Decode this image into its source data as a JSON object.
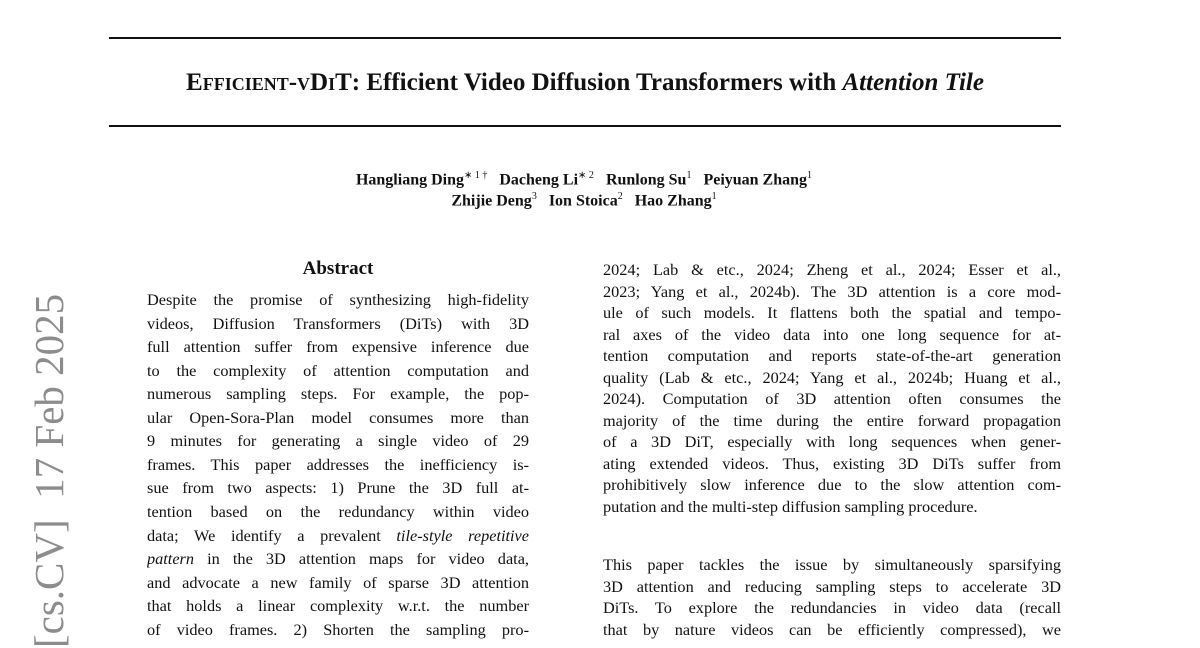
{
  "header": {
    "title": {
      "smallcaps": "Efficient-vDiT",
      "main": ": Efficient Video Diffusion Transformers with ",
      "italic": "Attention Tile"
    }
  },
  "authors": {
    "rows": [
      [
        {
          "name": "Hangliang Ding",
          "sup": "∗ 1 †"
        },
        {
          "name": "Dacheng Li",
          "sup": "∗ 2"
        },
        {
          "name": "Runlong Su",
          "sup": "1"
        },
        {
          "name": "Peiyuan Zhang",
          "sup": "1"
        }
      ],
      [
        {
          "name": "Zhijie Deng",
          "sup": "3"
        },
        {
          "name": "Ion Stoica",
          "sup": "2"
        },
        {
          "name": "Hao Zhang",
          "sup": "1"
        }
      ]
    ]
  },
  "abstract": {
    "heading": "Abstract",
    "lines": [
      "Despite the promise of synthesizing high-fidelity",
      "videos, Diffusion Transformers (DiTs) with 3D",
      "full attention suffer from expensive inference due",
      "to the complexity of attention computation and",
      "numerous sampling steps. For example, the pop-",
      "ular Open-Sora-Plan model consumes more than",
      "9 minutes for generating a single video of 29",
      "frames. This paper addresses the inefficiency is-",
      "sue from two aspects: 1) Prune the 3D full at-",
      "tention based on the redundancy within video",
      [
        {
          "text": "data; We identify a prevalent ",
          "italic": false
        },
        {
          "text": "tile-style repetitive",
          "italic": true
        }
      ],
      [
        {
          "text": "pattern",
          "italic": true
        },
        {
          "text": " in the 3D attention maps for video data,",
          "italic": false
        }
      ],
      "and advocate a new family of sparse 3D attention",
      "that holds a linear complexity w.r.t. the number",
      "of video frames. 2) Shorten the sampling pro-"
    ]
  },
  "body": {
    "paragraphs": [
      [
        "2024; Lab & etc., 2024; Zheng et al., 2024; Esser et al.,",
        "2023; Yang et al., 2024b). The 3D attention is a core mod-",
        "ule of such models. It flattens both the spatial and tempo-",
        "ral axes of the video data into one long sequence for at-",
        "tention computation and reports state-of-the-art generation",
        "quality (Lab & etc., 2024; Yang et al., 2024b; Huang et al.,",
        "2024). Computation of 3D attention often consumes the",
        "majority of the time during the entire forward propagation",
        "of a 3D DiT, especially with long sequences when gener-",
        "ating extended videos. Thus, existing 3D DiTs suffer from",
        "prohibitively slow inference due to the slow attention com-",
        "putation and the multi-step diffusion sampling procedure."
      ],
      [
        "This paper tackles the issue by simultaneously sparsifying",
        "3D attention and reducing sampling steps to accelerate 3D",
        "DiTs. To explore the redundancies in video data (recall",
        "that by nature videos can be efficiently compressed), we"
      ]
    ]
  },
  "sidebar": {
    "stamp": "[cs.CV]  17 Feb 2025"
  }
}
